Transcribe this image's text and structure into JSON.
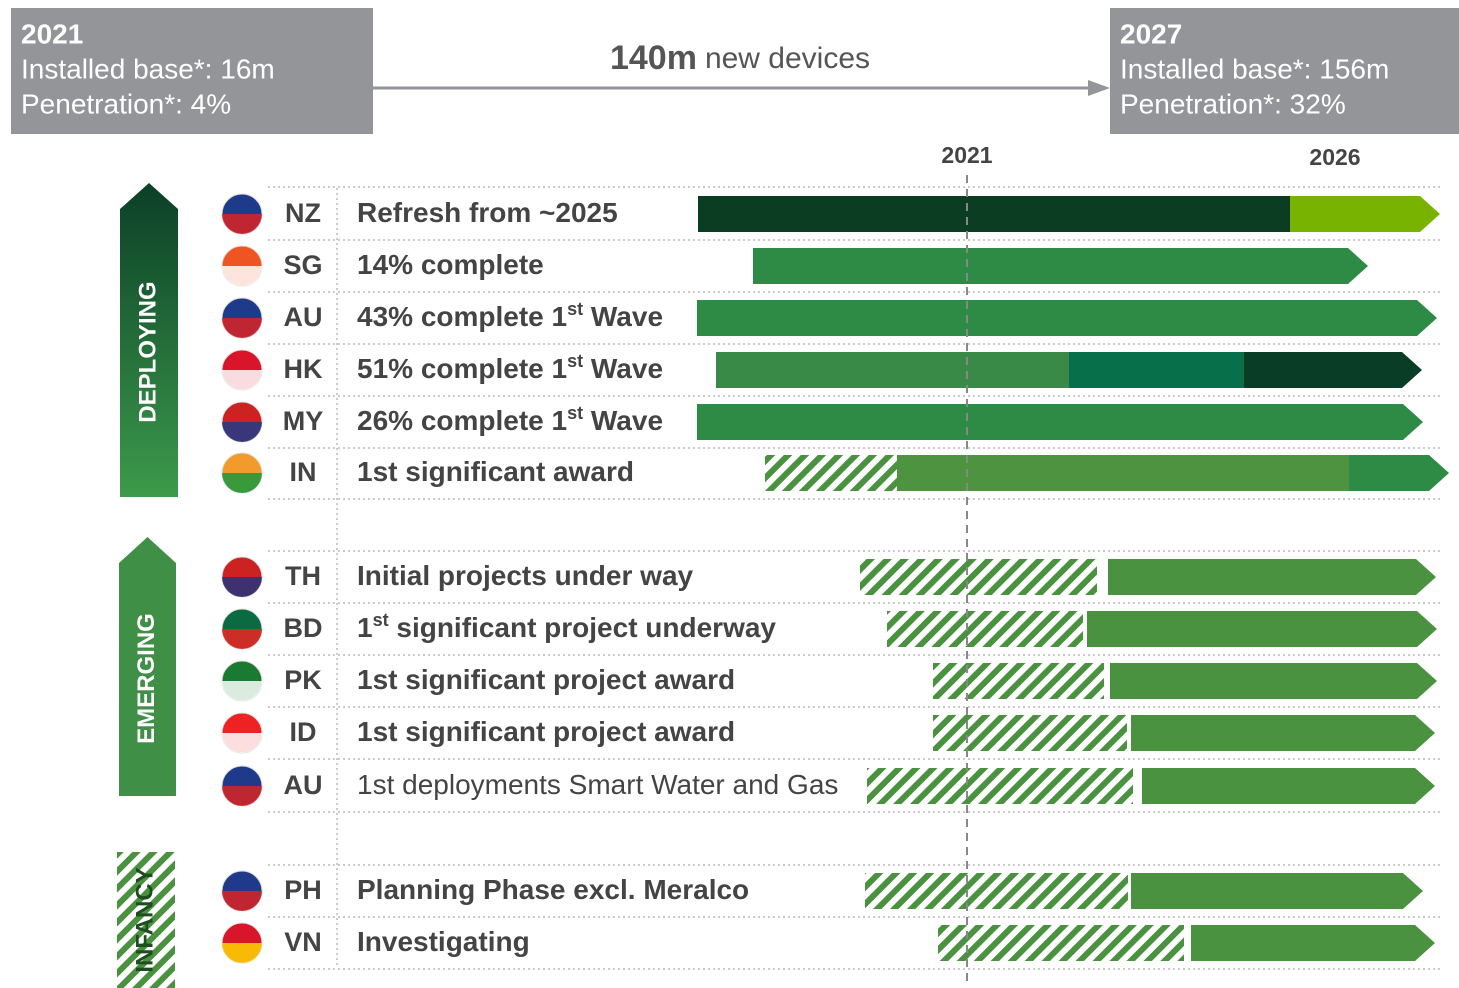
{
  "header": {
    "start": {
      "year": "2021",
      "base": "Installed base*: 16m",
      "penetration": "Penetration*: 4%"
    },
    "middle": {
      "amount": "140m",
      "text": "new devices"
    },
    "end": {
      "year": "2027",
      "base": "Installed base*: 156m",
      "penetration": "Penetration*: 32%"
    }
  },
  "timeline": {
    "labels": [
      "2021",
      "2026"
    ]
  },
  "groups": [
    {
      "name": "DEPLOYING",
      "rows": [
        {
          "code": "NZ",
          "text": "Refresh from ~2025"
        },
        {
          "code": "SG",
          "text": "14% complete"
        },
        {
          "code": "AU",
          "text": "43% complete 1",
          "sup": "st",
          "after": " Wave"
        },
        {
          "code": "HK",
          "text": "51% complete 1",
          "sup": "st",
          "after": " Wave"
        },
        {
          "code": "MY",
          "text": "26% complete 1",
          "sup": "st",
          "after": " Wave"
        },
        {
          "code": "IN",
          "text": "1st significant award"
        }
      ]
    },
    {
      "name": "EMERGING",
      "rows": [
        {
          "code": "TH",
          "text": "Initial projects under way"
        },
        {
          "code": "BD",
          "text": "1",
          "sup": "st",
          "after": " significant project underway"
        },
        {
          "code": "PK",
          "text": "1st significant project award"
        },
        {
          "code": "ID",
          "text": "1st significant project award"
        },
        {
          "code": "AU",
          "text": "1st deployments Smart Water and Gas"
        }
      ]
    },
    {
      "name": "INFANCY",
      "rows": [
        {
          "code": "PH",
          "text": "Planning Phase excl. Meralco"
        },
        {
          "code": "VN",
          "text": "Investigating"
        }
      ]
    }
  ]
}
